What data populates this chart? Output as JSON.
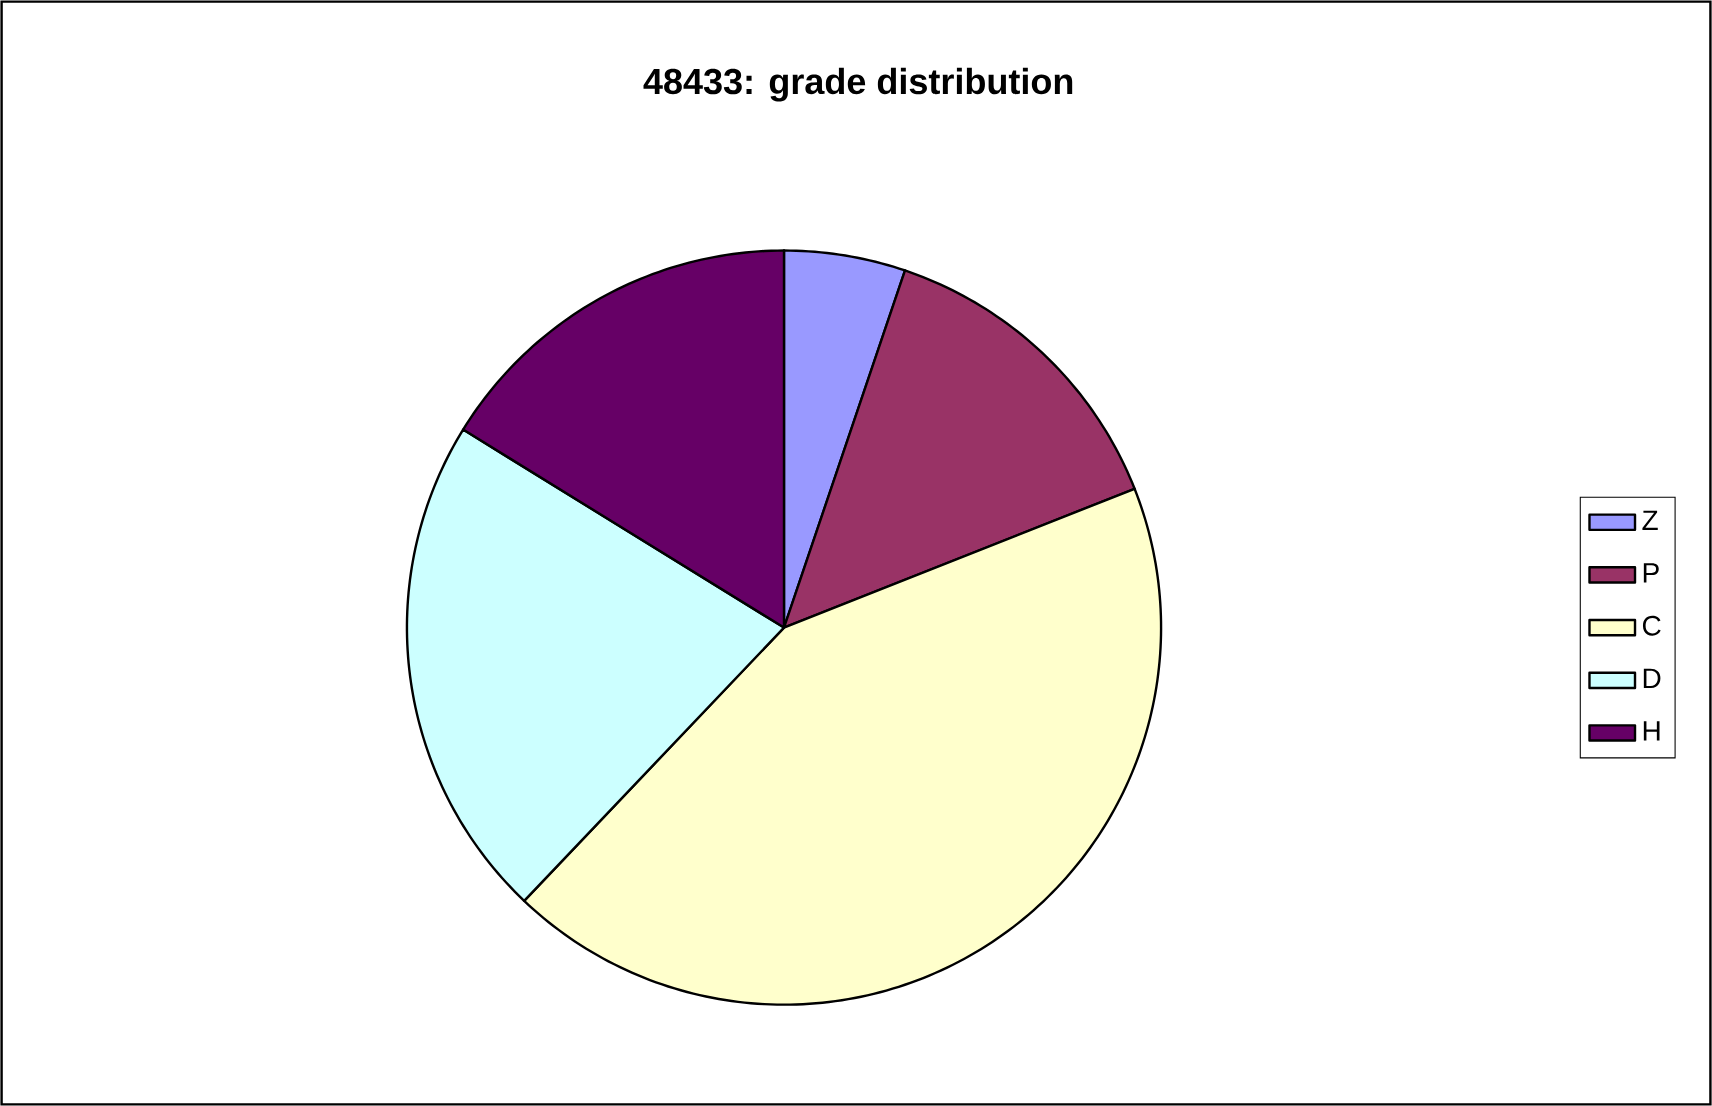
{
  "chart_data": {
    "type": "pie",
    "title": "48433: grade distribution",
    "categories": [
      "Z",
      "P",
      "C",
      "D",
      "H"
    ],
    "values": [
      5.2,
      13.8,
      43.1,
      21.7,
      16.2
    ],
    "colors": [
      "#9999ff",
      "#993366",
      "#ffffcc",
      "#ccffff",
      "#660066"
    ],
    "legend": "right"
  }
}
